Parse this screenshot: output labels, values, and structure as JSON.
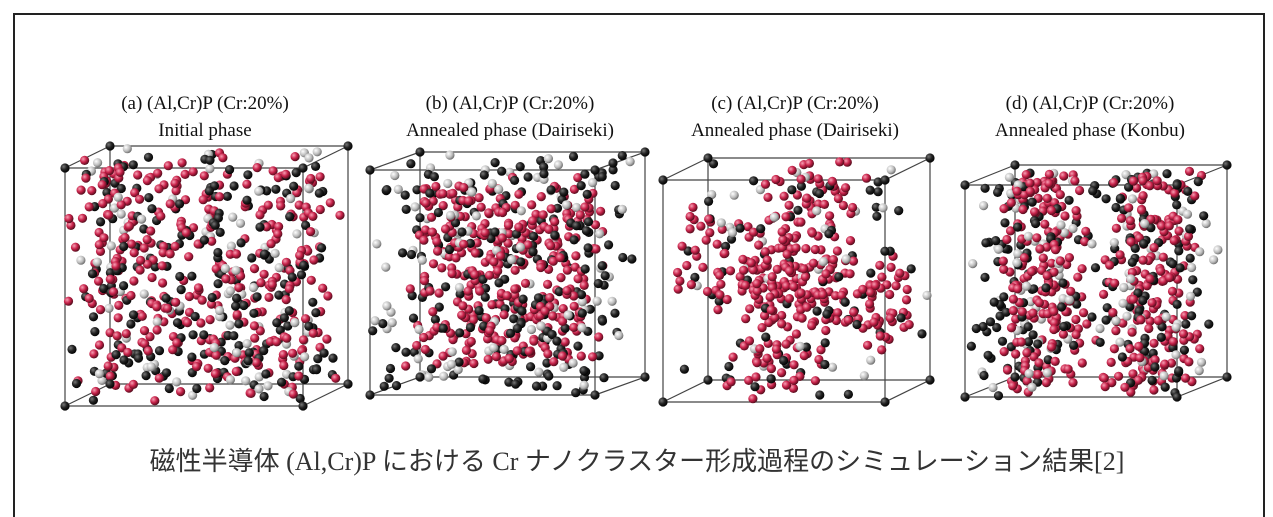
{
  "panels": [
    {
      "title": "(a) (Al,Cr)P (Cr:20%)",
      "subtitle": "Initial phase"
    },
    {
      "title": "(b) (Al,Cr)P (Cr:20%)",
      "subtitle": "Annealed phase (Dairiseki)"
    },
    {
      "title": "(c) (Al,Cr)P (Cr:20%)",
      "subtitle": "Annealed phase (Dairiseki)"
    },
    {
      "title": "(d) (Al,Cr)P (Cr:20%)",
      "subtitle": "Annealed phase (Konbu)"
    }
  ],
  "caption": "磁性半導体 (Al,Cr)P における Cr ナノクラスター形成過程のシミュレーション結果[2]"
}
